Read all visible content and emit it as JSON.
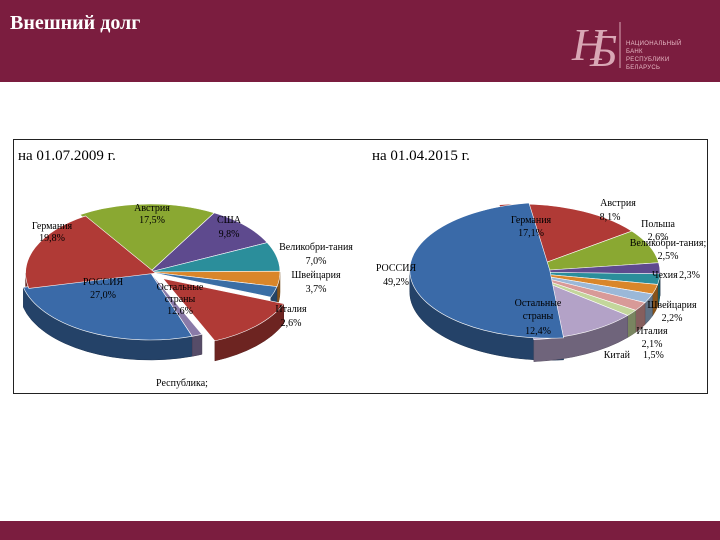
{
  "header": {
    "title": "Внешний долг"
  },
  "logo": {
    "text_lines": [
      "НАЦИОНАЛЬНЫЙ",
      "БАНК",
      "РЕСПУБЛИКИ",
      "БЕЛАРУСЬ"
    ]
  },
  "colors": {
    "brand": "#7b1d3f"
  },
  "chart_data": [
    {
      "type": "pie",
      "title": "на 01.07.2009 г.",
      "slices": [
        {
          "label": "Австрия",
          "value_text": "17,5%",
          "value": 17.5,
          "color": "#8aa832"
        },
        {
          "label": "США",
          "value_text": "9,8%",
          "value": 9.8,
          "color": "#5e4a8e"
        },
        {
          "label": "Великобри-тания",
          "value_text": "7,0%",
          "value": 7.0,
          "color": "#2b8e9b"
        },
        {
          "label": "Швейцария",
          "value_text": "3,7%",
          "value": 3.7,
          "color": "#d9862a"
        },
        {
          "label": "Италия",
          "value_text": "2,6%",
          "value": 2.6,
          "color": "#3a6ea5"
        },
        {
          "label": "Остальные страны",
          "value_text": "12,6%",
          "value": 12.6,
          "color": "#b03a36"
        },
        {
          "label": "Республика;",
          "value_text": "",
          "value": 1.3,
          "color": "#8a7aa8"
        },
        {
          "label": "РОССИЯ",
          "value_text": "27,0%",
          "value": 27.0,
          "color": "#3a6aa8"
        },
        {
          "label": "Германия",
          "value_text": "19,8%",
          "value": 19.8,
          "color": "#b03a36"
        }
      ]
    },
    {
      "type": "pie",
      "title": "на 01.04.2015 г.",
      "slices": [
        {
          "label": "Германия",
          "value_text": "17,1%",
          "value": 17.1,
          "color": "#b03a36"
        },
        {
          "label": "Австрия",
          "value_text": "8,1%",
          "value": 8.1,
          "color": "#8aa832"
        },
        {
          "label": "Польша",
          "value_text": "2,6%",
          "value": 2.6,
          "color": "#5e4a8e"
        },
        {
          "label": "Великобри-тания;",
          "value_text": "2,5%",
          "value": 2.5,
          "color": "#2b8e9b"
        },
        {
          "label": "Чехия",
          "value_text": "2,3%",
          "value": 2.3,
          "color": "#d9862a"
        },
        {
          "label": "Швейцария",
          "value_text": "2,2%",
          "value": 2.2,
          "color": "#9bb8d8"
        },
        {
          "label": "Италия",
          "value_text": "2,1%",
          "value": 2.1,
          "color": "#d89a98"
        },
        {
          "label": "Китай",
          "value_text": "1,5%",
          "value": 1.5,
          "color": "#c3d69b"
        },
        {
          "label": "Остальные страны",
          "value_text": "12,4%",
          "value": 12.4,
          "color": "#b3a2c7"
        },
        {
          "label": "РОССИЯ",
          "value_text": "49,2%",
          "value": 49.2,
          "color": "#3a6aa8"
        }
      ]
    }
  ]
}
